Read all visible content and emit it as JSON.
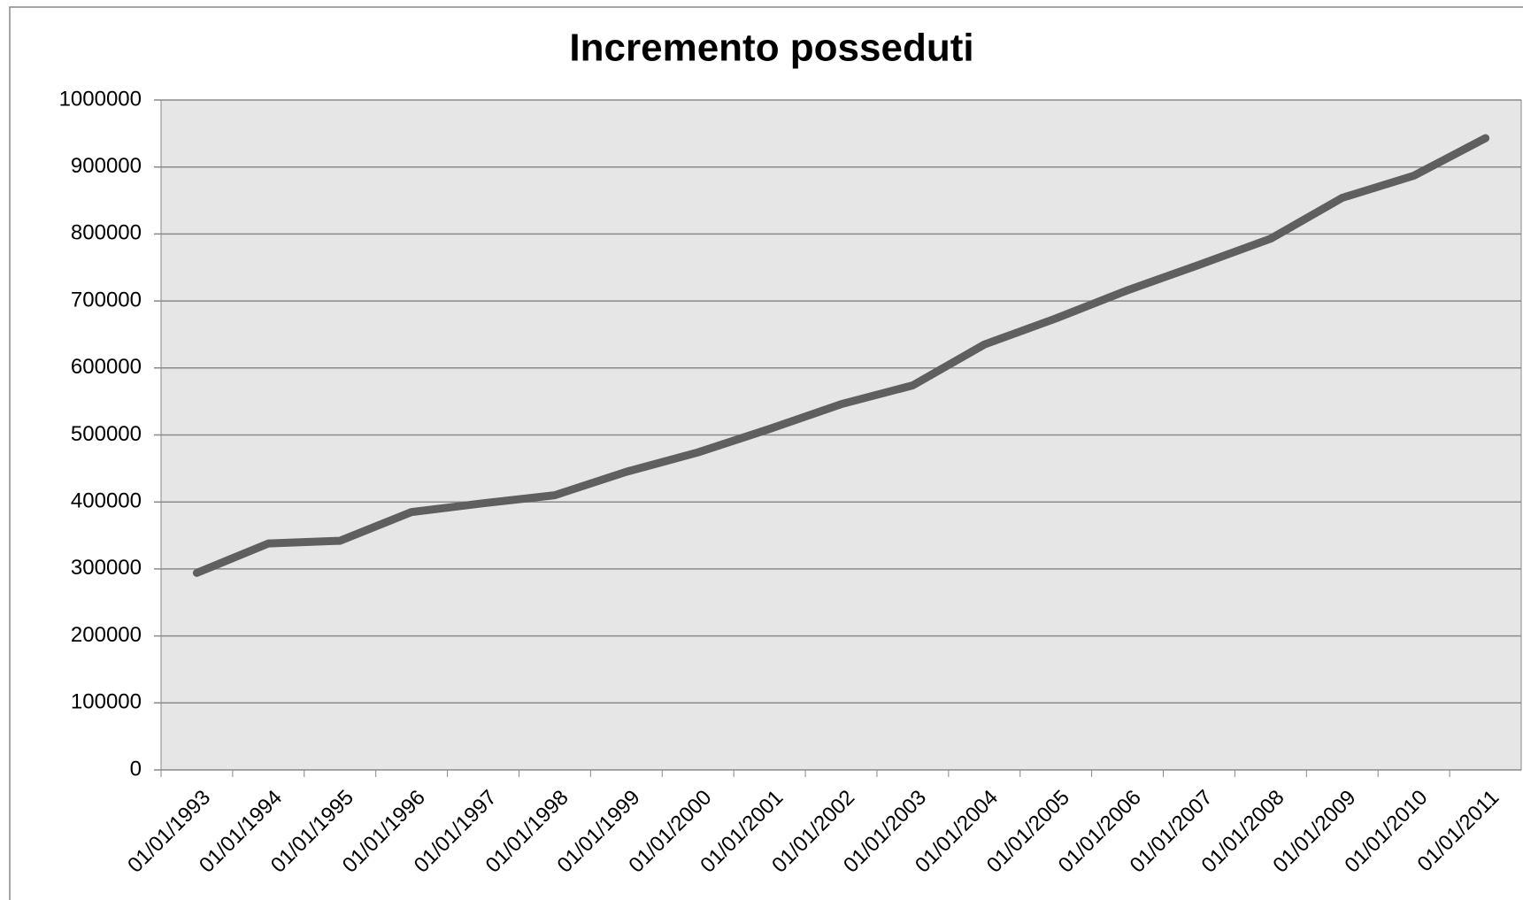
{
  "chart_data": {
    "type": "line",
    "title": "Incremento posseduti",
    "categories": [
      "01/01/1993",
      "01/01/1994",
      "01/01/1995",
      "01/01/1996",
      "01/01/1997",
      "01/01/1998",
      "01/01/1999",
      "01/01/2000",
      "01/01/2001",
      "01/01/2002",
      "01/01/2003",
      "01/01/2004",
      "01/01/2005",
      "01/01/2006",
      "01/01/2007",
      "01/01/2008",
      "01/01/2009",
      "01/01/2010",
      "01/01/2011"
    ],
    "values": [
      294000,
      338000,
      342000,
      385000,
      398000,
      410000,
      445000,
      474000,
      509000,
      546000,
      574000,
      635000,
      674000,
      716000,
      754000,
      793000,
      854000,
      887000,
      943000
    ],
    "color": "#5f5f5f",
    "ylim": [
      0,
      1000000
    ],
    "yticks": [
      0,
      100000,
      200000,
      300000,
      400000,
      500000,
      600000,
      700000,
      800000,
      900000,
      1000000
    ],
    "grid": true
  }
}
